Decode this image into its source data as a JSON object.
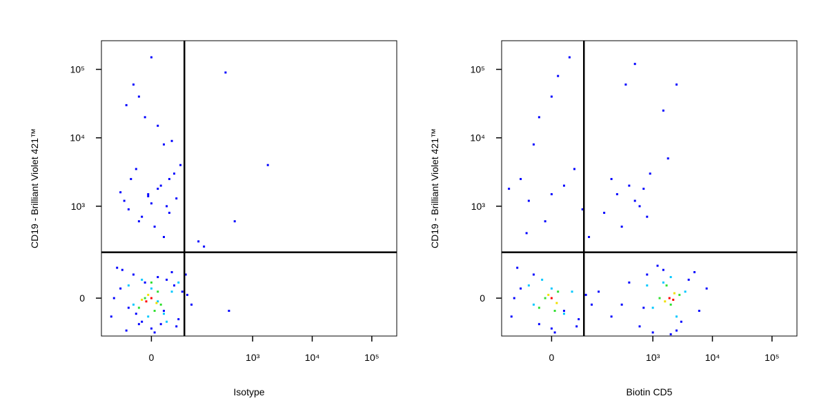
{
  "chart_data": [
    {
      "type": "scatter",
      "xlabel": "Isotype",
      "ylabel": "CD19 - Brilliant Violet 421™",
      "xscale": "asinh",
      "yscale": "asinh",
      "xlim": [
        -135,
        262144
      ],
      "ylim": [
        -150,
        262144
      ],
      "xticks": [
        0,
        {
          "value": 1000,
          "label": "10³"
        },
        {
          "value": 10000,
          "label": "10⁴"
        },
        {
          "value": 100000,
          "label": "10⁵"
        }
      ],
      "yticks": [
        0,
        {
          "value": 1000,
          "label": "10³"
        },
        {
          "value": 10000,
          "label": "10⁴"
        },
        {
          "value": 100000,
          "label": "10⁵"
        }
      ],
      "gates": {
        "x": 66,
        "y": 203
      },
      "series": [
        {
          "color": "#0000ff",
          "x": [
            -90,
            -60,
            -45,
            -30,
            -20,
            -10,
            0,
            10,
            20,
            35,
            50,
            60,
            75,
            -70,
            -40,
            -15,
            5,
            25,
            45,
            -80,
            -55,
            -25,
            15,
            40,
            90,
            -35,
            -5,
            30,
            55,
            -50,
            -20,
            10,
            40,
            -10,
            20,
            -30,
            0,
            25,
            -15,
            15,
            -5,
            5,
            35,
            -40,
            10,
            -20,
            20,
            0,
            -25,
            30,
            150,
            120,
            400,
            70,
            1800,
            500,
            350,
            -60,
            45,
            -45
          ],
          "values": [
            -60,
            30,
            -120,
            80,
            -90,
            50,
            -110,
            70,
            -40,
            90,
            -70,
            20,
            10,
            110,
            -30,
            -80,
            -130,
            60,
            -100,
            0,
            100,
            -50,
            -90,
            40,
            -20,
            2500,
            1500,
            800,
            4000,
            1200,
            600,
            1800,
            3000,
            20000,
            8000,
            60000,
            150000,
            1000,
            700,
            2000,
            1400,
            500,
            9000,
            900,
            15000,
            40000,
            350,
            1100,
            3500,
            2500,
            250,
            300,
            -40,
            80,
            4000,
            600,
            90000,
            1600,
            1300,
            30000
          ]
        },
        {
          "color": "#00c8ff",
          "x": [
            -30,
            0,
            20,
            -15,
            10,
            35,
            -40,
            25,
            -5,
            50
          ],
          "values": [
            -20,
            30,
            -50,
            60,
            -10,
            20,
            40,
            -80,
            -60,
            50
          ]
        },
        {
          "color": "#30e030",
          "x": [
            -10,
            10,
            -20,
            15,
            0,
            5
          ],
          "values": [
            0,
            20,
            -30,
            -20,
            50,
            -40
          ]
        },
        {
          "color": "#f0e000",
          "x": [
            -5,
            8,
            -15
          ],
          "values": [
            10,
            -15,
            -5
          ]
        },
        {
          "color": "#ff0000",
          "x": [
            0,
            -8
          ],
          "values": [
            0,
            -10
          ]
        }
      ]
    },
    {
      "type": "scatter",
      "xlabel": "Biotin CD5",
      "ylabel": "CD19 - Brilliant Violet 421™",
      "xscale": "asinh",
      "yscale": "asinh",
      "xlim": [
        -135,
        262144
      ],
      "ylim": [
        -150,
        262144
      ],
      "xticks": [
        0,
        {
          "value": 1000,
          "label": "10³"
        },
        {
          "value": 10000,
          "label": "10⁴"
        },
        {
          "value": 100000,
          "label": "10⁵"
        }
      ],
      "yticks": [
        0,
        {
          "value": 1000,
          "label": "10³"
        },
        {
          "value": 10000,
          "label": "10⁴"
        },
        {
          "value": 100000,
          "label": "10⁵"
        }
      ],
      "gates": {
        "x": 64,
        "y": 203
      },
      "series": [
        {
          "color": "#0000ff",
          "x": [
            -90,
            -60,
            -30,
            -20,
            0,
            20,
            50,
            70,
            -70,
            5,
            45,
            -80,
            90,
            -40,
            -10,
            20,
            60,
            -60,
            0,
            40,
            -20,
            10,
            30,
            -30,
            0,
            150,
            250,
            400,
            600,
            800,
            300,
            500,
            200,
            700,
            350,
            500,
            900,
            1500,
            2500,
            200,
            400,
            600,
            800,
            1000,
            1500,
            2500,
            4000,
            6000,
            8000,
            3000,
            1200,
            5000,
            700,
            2000,
            120,
            300,
            -45,
            80,
            -100,
            1800
          ],
          "values": [
            -60,
            30,
            80,
            -90,
            -110,
            -40,
            -70,
            10,
            110,
            -130,
            -100,
            0,
            -20,
            1200,
            600,
            2000,
            900,
            2500,
            1500,
            3500,
            20000,
            80000,
            150000,
            8000,
            40000,
            800,
            1500,
            2000,
            1000,
            700,
            500,
            1200,
            2500,
            1800,
            60000,
            120000,
            3000,
            25000,
            60000,
            -60,
            50,
            -100,
            80,
            -130,
            100,
            -120,
            60,
            -40,
            30,
            -80,
            120,
            90,
            -30,
            -140,
            20,
            -20,
            400,
            350,
            1800,
            5000
          ]
        },
        {
          "color": "#00c8ff",
          "x": [
            -30,
            0,
            20,
            -15,
            35,
            -40,
            1000,
            1500,
            2500,
            3500,
            800,
            2000
          ],
          "values": [
            -20,
            30,
            -50,
            60,
            20,
            40,
            -30,
            50,
            -60,
            20,
            40,
            70
          ]
        },
        {
          "color": "#30e030",
          "x": [
            -10,
            10,
            -20,
            5,
            1300,
            2000,
            2800,
            1700
          ],
          "values": [
            0,
            20,
            -30,
            -40,
            0,
            -20,
            10,
            40
          ]
        },
        {
          "color": "#f0e000",
          "x": [
            -5,
            8,
            1600,
            2300
          ],
          "values": [
            10,
            -15,
            -10,
            15
          ]
        },
        {
          "color": "#ff0000",
          "x": [
            0,
            1900,
            2200
          ],
          "values": [
            0,
            0,
            -5
          ]
        }
      ]
    }
  ]
}
